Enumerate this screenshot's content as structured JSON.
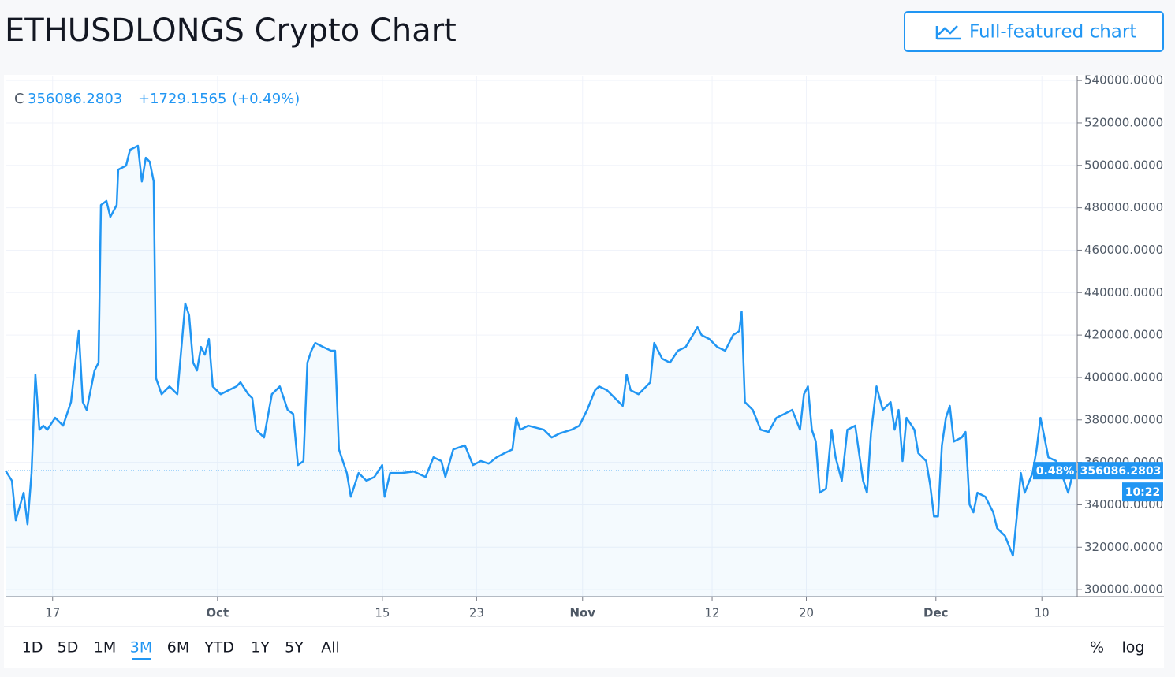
{
  "chart_data": {
    "type": "line",
    "title": "ETHUSDLONGS Crypto Chart",
    "button_label": "Full-featured chart",
    "legend_prefix": "C",
    "change": "+1729.1565",
    "change_percent": "(+0.49%)",
    "price_tag_percent": "0.48%",
    "price_tag_time": "10:22",
    "range_buttons": [
      "1D",
      "5D",
      "1M",
      "3M",
      "6M",
      "YTD",
      "1Y",
      "5Y",
      "All"
    ],
    "active_range": "3M",
    "scale_buttons": [
      "%",
      "log"
    ],
    "grid": true,
    "x": [
      13.0,
      13.54,
      13.87,
      14.54,
      14.87,
      15.21,
      15.54,
      15.88,
      16.21,
      16.55,
      17.22,
      17.89,
      18.56,
      19.22,
      19.56,
      19.89,
      20.56,
      20.9,
      21.1,
      21.57,
      21.9,
      22.44,
      22.57,
      23.24,
      23.57,
      24.24,
      24.58,
      24.91,
      25.25,
      25.58,
      25.78,
      26.25,
      26.92,
      27.59,
      28.26,
      28.59,
      28.93,
      29.26,
      29.6,
      29.93,
      30.27,
      30.6,
      31.27,
      31.94,
      32.61,
      32.95,
      33.61,
      33.95,
      34.28,
      34.95,
      35.62,
      36.29,
      36.96,
      37.43,
      37.83,
      38.3,
      38.63,
      38.97,
      39.3,
      39.97,
      40.64,
      40.98,
      41.31,
      41.98,
      42.32,
      42.98,
      43.65,
      44.32,
      44.99,
      45.19,
      45.66,
      46.67,
      47.67,
      48.67,
      49.34,
      50.01,
      50.35,
      51.02,
      52.02,
      52.69,
      53.36,
      54.03,
      54.7,
      55.37,
      56.04,
      56.37,
      56.71,
      57.38,
      58.71,
      59.38,
      60.05,
      61.06,
      61.73,
      62.39,
      63.06,
      63.4,
      64.07,
      64.74,
      65.41,
      65.74,
      66.08,
      66.75,
      67.41,
      67.75,
      68.08,
      68.75,
      69.42,
      70.09,
      70.76,
      71.76,
      72.1,
      72.77,
      73.44,
      74.11,
      74.78,
      75.31,
      75.51,
      75.78,
      76.45,
      77.12,
      77.79,
      78.46,
      79.13,
      79.8,
      80.46,
      80.8,
      81.13,
      81.47,
      81.8,
      82.14,
      82.67,
      83.14,
      83.48,
      84.01,
      84.48,
      85.15,
      85.48,
      85.82,
      86.15,
      86.49,
      86.96,
      87.49,
      88.16,
      88.5,
      88.83,
      89.17,
      89.5,
      90.17,
      90.51,
      91.18,
      91.51,
      91.84,
      92.18,
      92.51,
      92.85,
      93.18,
      93.52,
      94.19,
      94.52,
      94.86,
      95.19,
      95.53,
      96.2,
      96.87,
      97.2,
      97.87,
      98.54,
      98.87,
      99.21,
      99.54,
      100.21,
      100.55,
      100.88,
      101.22,
      101.55,
      102.22,
      102.89,
      103.23,
      103.56,
      103.96
    ],
    "series": [
      {
        "color": "#2196f3",
        "values": [
          356100,
          351300,
          332700,
          345700,
          330800,
          355000,
          401400,
          375400,
          377300,
          375400,
          381000,
          377300,
          388400,
          421900,
          388400,
          384700,
          403300,
          407000,
          481300,
          483200,
          475700,
          481300,
          498000,
          499900,
          507300,
          509200,
          492400,
          503600,
          501700,
          492400,
          399600,
          392100,
          395800,
          392100,
          434900,
          429300,
          407000,
          403300,
          414400,
          410700,
          418100,
          395800,
          392100,
          394000,
          395800,
          397700,
          392100,
          390300,
          375400,
          371700,
          392100,
          395800,
          384700,
          382800,
          358700,
          360600,
          407000,
          412600,
          416300,
          414400,
          412600,
          412600,
          366100,
          355000,
          343800,
          355000,
          351300,
          353100,
          358700,
          343800,
          355000,
          355000,
          355700,
          353100,
          362400,
          360600,
          353100,
          366100,
          368000,
          358700,
          360600,
          359400,
          362400,
          364300,
          366100,
          381000,
          375400,
          377300,
          375400,
          371700,
          373600,
          375400,
          377300,
          384700,
          394000,
          395800,
          394000,
          390300,
          386600,
          401400,
          394000,
          392100,
          395800,
          397700,
          416300,
          408900,
          407000,
          412600,
          414400,
          423700,
          420000,
          418100,
          414400,
          412600,
          420000,
          421900,
          431100,
          388400,
          384700,
          375400,
          374300,
          381000,
          382800,
          384700,
          375400,
          392100,
          395800,
          375400,
          369800,
          345700,
          347600,
          375400,
          362400,
          351300,
          375400,
          377300,
          364300,
          351300,
          345700,
          373600,
          395800,
          384700,
          388400,
          375400,
          384700,
          360600,
          381000,
          375400,
          364300,
          360600,
          349400,
          334500,
          334500,
          368000,
          381000,
          386600,
          369800,
          371700,
          374300,
          340100,
          336400,
          345700,
          343800,
          336400,
          329000,
          325300,
          316000,
          334500,
          355000,
          345700,
          355000,
          366100,
          381000,
          371700,
          362400,
          360600,
          351300,
          345700,
          353100,
          356086.2803
        ]
      }
    ],
    "xlim": [
      13,
      104
    ],
    "xticks": [
      17,
      {
        "value": 31,
        "label": "Oct"
      },
      {
        "value": 45,
        "label": "15"
      },
      {
        "value": 53,
        "label": "23"
      },
      {
        "value": 62,
        "label": "Nov"
      },
      {
        "value": 73,
        "label": "12"
      },
      {
        "value": 81,
        "label": "20"
      },
      {
        "value": 92,
        "label": "Dec"
      },
      {
        "value": 101,
        "label": "10"
      }
    ],
    "ylim": [
      296700,
      541900
    ],
    "yticks": [
      {
        "value": 300000,
        "label": "300000.0000"
      },
      {
        "value": 320000,
        "label": "320000.0000"
      },
      {
        "value": 340000,
        "label": "340000.0000"
      },
      {
        "value": 360000,
        "label": "360000.0000"
      },
      {
        "value": 380000,
        "label": "380000.0000"
      },
      {
        "value": 400000,
        "label": "400000.0000"
      },
      {
        "value": 420000,
        "label": "420000.0000"
      },
      {
        "value": 440000,
        "label": "440000.0000"
      },
      {
        "value": 460000,
        "label": "460000.0000"
      },
      {
        "value": 480000,
        "label": "480000.0000"
      },
      {
        "value": 500000,
        "label": "500000.0000"
      },
      {
        "value": 520000,
        "label": "520000.0000"
      },
      {
        "value": 540000,
        "label": "540000.0000"
      }
    ]
  }
}
